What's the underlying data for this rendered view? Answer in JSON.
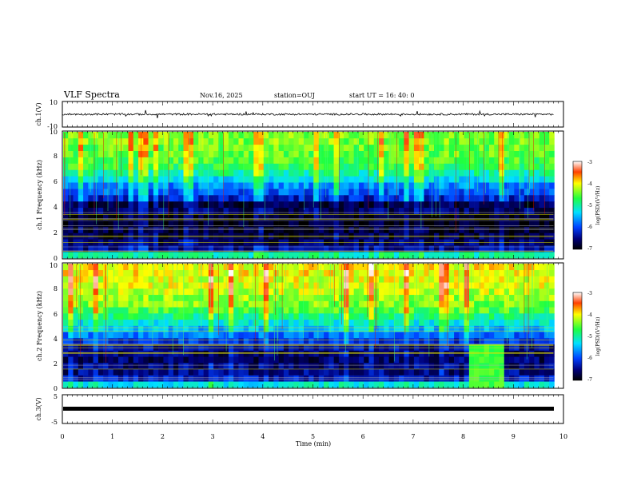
{
  "header": {
    "title": "VLF Spectra",
    "date": "Nov.16, 2025",
    "station": "station=OUJ",
    "start": "start  UT  =   16: 40: 0"
  },
  "chart_data": [
    {
      "type": "line",
      "name": "ch1-waveform",
      "ylabel": "ch.1(V)",
      "ylim": [
        -10,
        10
      ],
      "yticks": [
        "10",
        "-10"
      ],
      "x": [
        0,
        0.5,
        1,
        1.5,
        2,
        2.5,
        3,
        3.5,
        4,
        4.5,
        5,
        5.5,
        6,
        6.5,
        7,
        7.5,
        8,
        8.5,
        9,
        9.5,
        9.8
      ],
      "values": [
        0,
        -0.5,
        0.4,
        -0.6,
        0.3,
        -0.2,
        0.5,
        -0.4,
        0.2,
        -0.3,
        0.4,
        -0.5,
        0.3,
        -0.2,
        0.4,
        -0.3,
        0.2,
        -0.4,
        0.3,
        -0.2,
        0.1
      ]
    },
    {
      "type": "heatmap",
      "name": "ch1-spectrogram",
      "ylabel": "ch.1 Frequency (kHz)",
      "ylim": [
        0,
        10
      ],
      "yticks": [
        "0",
        "2",
        "4",
        "6",
        "8",
        "10"
      ],
      "freq_bands_khz": [
        0,
        0.5,
        1.0,
        1.5,
        2.0,
        2.5,
        3.0,
        3.5,
        4.0,
        4.5,
        5.0,
        5.5,
        6.0,
        6.5,
        7.0,
        7.5,
        8.0,
        8.5,
        9.0,
        9.5
      ],
      "log_psd": [
        -5.0,
        -6.4,
        -6.6,
        -6.7,
        -6.8,
        -6.9,
        -6.9,
        -6.6,
        -6.7,
        -6.2,
        -5.9,
        -5.7,
        -5.3,
        -5.0,
        -4.7,
        -4.6,
        -4.5,
        -4.5,
        -4.4,
        -4.4
      ]
    },
    {
      "type": "heatmap",
      "name": "ch2-spectrogram",
      "ylabel": "ch.2 Frequency (kHz)",
      "ylim": [
        0,
        10
      ],
      "yticks": [
        "0",
        "2",
        "4",
        "6",
        "8",
        "10"
      ],
      "freq_bands_khz": [
        0,
        0.5,
        1.0,
        1.5,
        2.0,
        2.5,
        3.0,
        3.5,
        4.0,
        4.5,
        5.0,
        5.5,
        6.0,
        6.5,
        7.0,
        7.5,
        8.0,
        8.5,
        9.0,
        9.5
      ],
      "log_psd": [
        -5.2,
        -6.3,
        -6.5,
        -6.5,
        -6.6,
        -6.6,
        -6.4,
        -6.1,
        -5.8,
        -5.5,
        -5.2,
        -4.9,
        -4.6,
        -4.4,
        -4.3,
        -4.2,
        -4.1,
        -4.1,
        -4.0,
        -4.0
      ]
    },
    {
      "type": "line",
      "name": "ch3-waveform",
      "ylabel": "ch.3(V)",
      "ylim": [
        -5,
        5
      ],
      "yticks": [
        "5",
        "-5"
      ],
      "x": [
        0,
        9.8
      ],
      "values": [
        -0.3,
        -0.3
      ]
    }
  ],
  "colorbar": {
    "label": "log(PSD)(V²/Hz)",
    "range": [
      -7,
      -3
    ],
    "ticks": [
      "-3",
      "-4",
      "-5",
      "-6",
      "-7"
    ]
  },
  "xaxis": {
    "label": "Time  (min)",
    "range": [
      0,
      10
    ],
    "ticks": [
      "0",
      "1",
      "2",
      "3",
      "4",
      "5",
      "6",
      "7",
      "8",
      "9",
      "10"
    ]
  },
  "colors": {
    "low": "#000a8c",
    "mid": "#00d7a8",
    "high": "#f0f000",
    "peak": "#e00000"
  }
}
